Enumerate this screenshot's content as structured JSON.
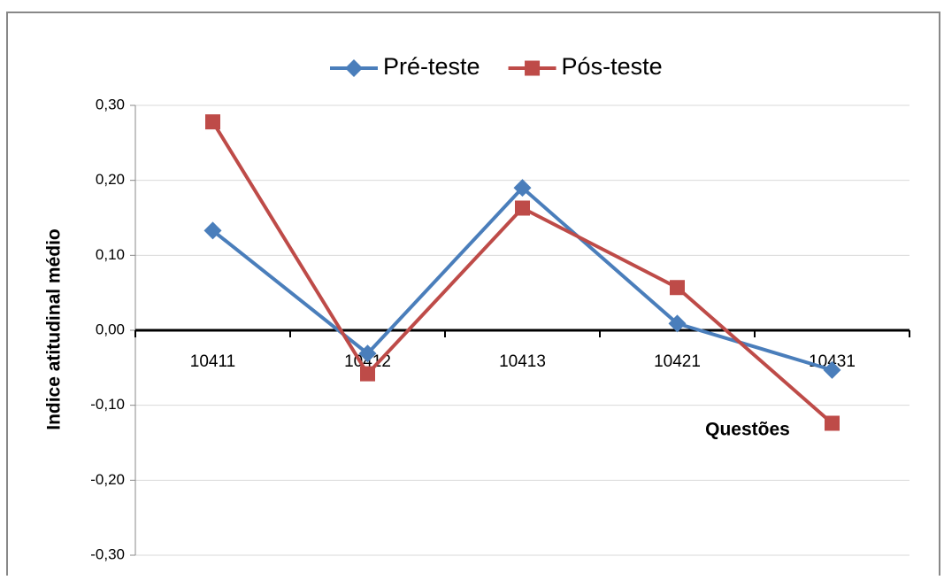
{
  "chart_data": {
    "type": "line",
    "x_label": "Questões",
    "y_label": "Indice atitudinal médio",
    "categories": [
      "10411",
      "10412",
      "10413",
      "10421",
      "10431"
    ],
    "series": [
      {
        "name": "Pré-teste",
        "color": "#4a7ebb",
        "marker": "diamond",
        "values": [
          0.133,
          -0.031,
          0.19,
          0.009,
          -0.053
        ]
      },
      {
        "name": "Pós-teste",
        "color": "#be4b48",
        "marker": "square",
        "values": [
          0.278,
          -0.058,
          0.163,
          0.057,
          -0.124
        ]
      }
    ],
    "ylim": [
      -0.3,
      0.3
    ],
    "yticks": [
      {
        "value": -0.3,
        "label": "-0,30"
      },
      {
        "value": -0.2,
        "label": "-0,20"
      },
      {
        "value": -0.1,
        "label": "-0,10"
      },
      {
        "value": 0,
        "label": "0,00"
      },
      {
        "value": 0.1,
        "label": "0,10"
      },
      {
        "value": 0.2,
        "label": "0,20"
      },
      {
        "value": 0.3,
        "label": "0,30"
      }
    ],
    "grid": true,
    "legend": "top"
  }
}
